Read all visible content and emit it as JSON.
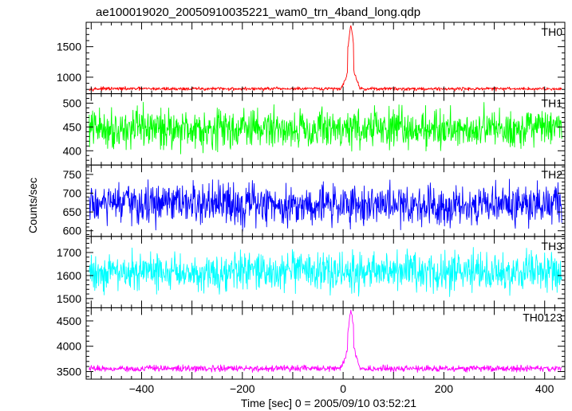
{
  "title": "ae100019020_20050910035221_wam0_trn_4band_long.qdp",
  "ylabel": "Counts/sec",
  "xlabel": "Time [sec] 0 = 2005/09/10 03:52:21",
  "chart_data": {
    "type": "line",
    "title": "ae100019020_20050910035221_wam0_trn_4band_long.qdp",
    "xlabel": "Time [sec] 0 = 2005/09/10 03:52:21",
    "ylabel": "Counts/sec",
    "xlim": [
      -510,
      440
    ],
    "xticks": [
      -400,
      -200,
      0,
      200,
      400
    ],
    "grid": false,
    "panels": [
      {
        "name": "TH0",
        "color": "#ff0000",
        "ylim": [
          730,
          1900
        ],
        "yticks": [
          1000,
          1500
        ],
        "baseline": 810,
        "noise": 30,
        "burst": {
          "center": 15,
          "rise": 22,
          "fall": 10,
          "peak": 1880,
          "shoulder": 1250
        }
      },
      {
        "name": "TH1",
        "color": "#00ff00",
        "ylim": [
          370,
          520
        ],
        "yticks": [
          400,
          450,
          500
        ],
        "baseline": 447,
        "noise": 45,
        "burst": null
      },
      {
        "name": "TH2",
        "color": "#0000ff",
        "ylim": [
          585,
          775
        ],
        "yticks": [
          600,
          650,
          700,
          750
        ],
        "baseline": 670,
        "noise": 60,
        "burst": null
      },
      {
        "name": "TH3",
        "color": "#00ffff",
        "ylim": [
          1460,
          1770
        ],
        "yticks": [
          1500,
          1600,
          1700
        ],
        "baseline": 1615,
        "noise": 90,
        "burst": null
      },
      {
        "name": "TH0123",
        "color": "#ff00ff",
        "ylim": [
          3350,
          4760
        ],
        "yticks": [
          3500,
          4000,
          4500
        ],
        "baseline": 3560,
        "noise": 65,
        "burst": {
          "center": 15,
          "rise": 22,
          "fall": 10,
          "peak": 4740,
          "shoulder": 4150
        }
      }
    ]
  }
}
